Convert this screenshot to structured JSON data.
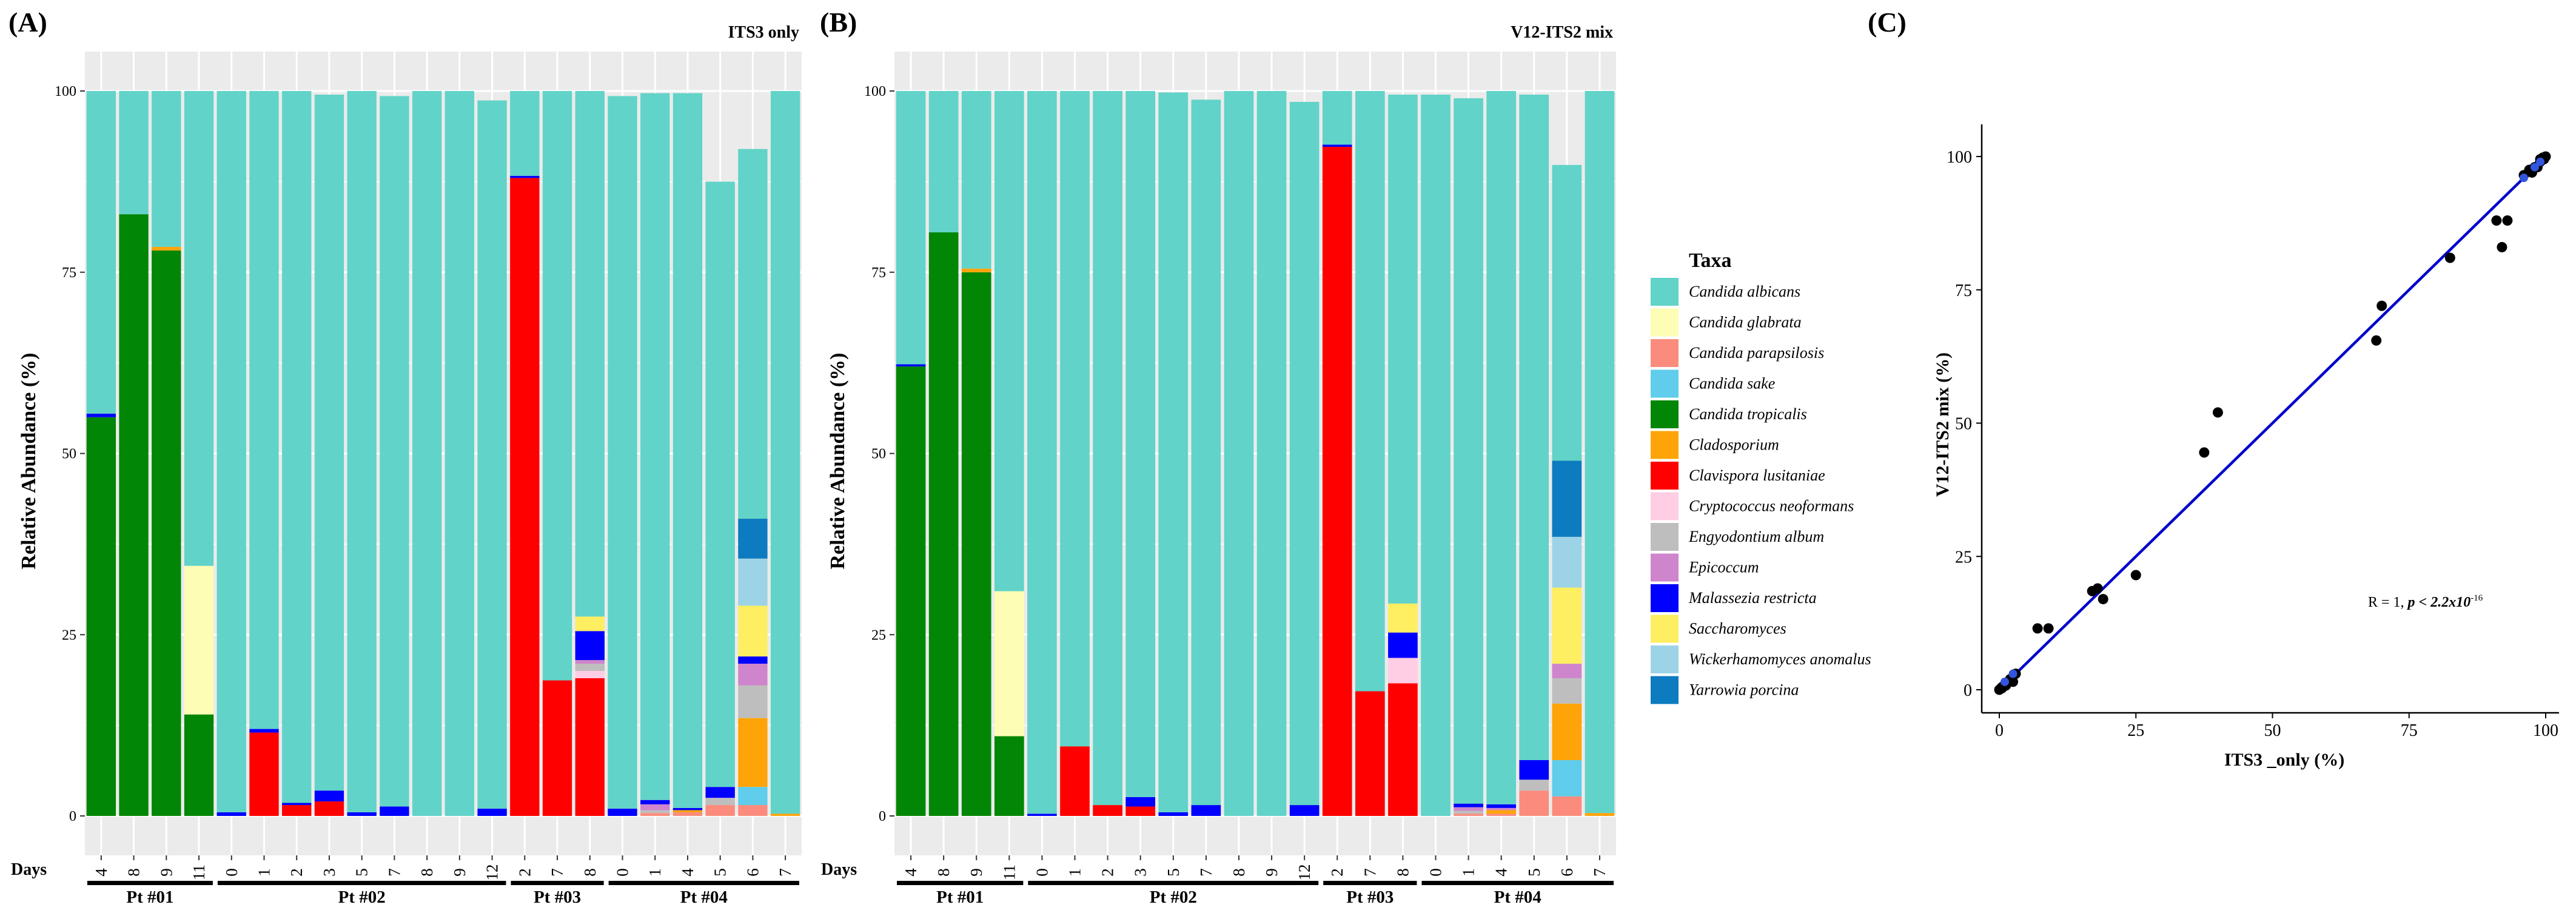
{
  "panels": [
    {
      "letter": "(A)",
      "strip": "ITS3 only"
    },
    {
      "letter": "(B)",
      "strip": "V12-ITS2 mix"
    },
    {
      "letter": "(C)"
    }
  ],
  "legend": {
    "title": "Taxa",
    "items": [
      {
        "name": "Candida albicans",
        "color": "#62d3c8"
      },
      {
        "name": "Candida glabrata",
        "color": "#fdfdb5"
      },
      {
        "name": "Candida parapsilosis",
        "color": "#fb8c7d"
      },
      {
        "name": "Candida sake",
        "color": "#5fcdeb"
      },
      {
        "name": "Candida tropicalis",
        "color": "#018605"
      },
      {
        "name": "Cladosporium",
        "color": "#fea408"
      },
      {
        "name": "Clavispora lusitaniae",
        "color": "#fe0000"
      },
      {
        "name": "Cryptococcus neoformans",
        "color": "#ffcde4"
      },
      {
        "name": "Engyodontium album",
        "color": "#bebebe"
      },
      {
        "name": "Epicoccum",
        "color": "#cf85cb"
      },
      {
        "name": "Malassezia restricta",
        "color": "#0000ff"
      },
      {
        "name": "Saccharomyces",
        "color": "#fdee62"
      },
      {
        "name": "Wickerhamomyces anomalus",
        "color": "#9dd3e6"
      },
      {
        "name": "Yarrowia porcina",
        "color": "#0d7bbf"
      }
    ]
  },
  "chart_data": [
    {
      "type": "bar",
      "stacked": true,
      "strip_title": "ITS3 only",
      "ylabel": "Relative Abundance (%)",
      "ylim": [
        0,
        100
      ],
      "yticks": [
        0,
        25,
        50,
        75,
        100
      ],
      "xlabel": "Days",
      "categories": [
        "4",
        "8",
        "9",
        "11",
        "0",
        "1",
        "2",
        "3",
        "5",
        "7",
        "8",
        "9",
        "12",
        "2",
        "7",
        "8",
        "0",
        "1",
        "4",
        "5",
        "6",
        "7"
      ],
      "groups": [
        {
          "label": "Pt #01",
          "count": 4
        },
        {
          "label": "Pt #02",
          "count": 9
        },
        {
          "label": "Pt #03",
          "count": 3
        },
        {
          "label": "Pt #04",
          "count": 6
        }
      ],
      "series": [
        {
          "name": "Candida tropicalis",
          "values": [
            55,
            83,
            78,
            14,
            0,
            0,
            0,
            0,
            0,
            0,
            0,
            0,
            0,
            0,
            0,
            0,
            0,
            0,
            0,
            0,
            0,
            0
          ]
        },
        {
          "name": "Candida glabrata",
          "values": [
            0,
            0,
            0,
            20.5,
            0,
            0,
            0,
            0,
            0,
            0,
            0,
            0,
            0,
            0,
            0,
            0,
            0,
            0,
            0,
            0,
            0,
            0
          ]
        },
        {
          "name": "Candida parapsilosis",
          "values": [
            0,
            0,
            0,
            0,
            0,
            0,
            0,
            0,
            0,
            0,
            0,
            0,
            0,
            0,
            0,
            0,
            0,
            0.4,
            0.5,
            1.5,
            1.5,
            0
          ]
        },
        {
          "name": "Candida sake",
          "values": [
            0,
            0,
            0,
            0,
            0,
            0,
            0,
            0,
            0,
            0,
            0,
            0,
            0,
            0,
            0,
            0,
            0,
            0,
            0,
            0,
            2.5,
            0
          ]
        },
        {
          "name": "Cladosporium",
          "values": [
            0,
            0,
            0.5,
            0,
            0,
            0,
            0,
            0,
            0,
            0,
            0,
            0,
            0,
            0,
            0,
            0,
            0,
            0,
            0.3,
            0,
            9.5,
            0.3
          ]
        },
        {
          "name": "Clavispora lusitaniae",
          "values": [
            0,
            0,
            0,
            0,
            0,
            11.5,
            1.5,
            2,
            0,
            0,
            0,
            0,
            0,
            88,
            18.7,
            19,
            0,
            0,
            0,
            0,
            0,
            0
          ]
        },
        {
          "name": "Cryptococcus neoformans",
          "values": [
            0,
            0,
            0,
            0,
            0,
            0,
            0,
            0,
            0,
            0,
            0,
            0,
            0,
            0,
            0,
            1,
            0,
            0,
            0,
            0,
            0,
            0
          ]
        },
        {
          "name": "Engyodontium album",
          "values": [
            0,
            0,
            0,
            0,
            0,
            0,
            0,
            0,
            0,
            0,
            0,
            0,
            0,
            0,
            0,
            1,
            0,
            0.4,
            0,
            1,
            4.5,
            0
          ]
        },
        {
          "name": "Epicoccum",
          "values": [
            0,
            0,
            0,
            0,
            0,
            0,
            0,
            0,
            0,
            0,
            0,
            0,
            0,
            0,
            0,
            0.5,
            0,
            0.8,
            0,
            0,
            3,
            0
          ]
        },
        {
          "name": "Malassezia restricta",
          "values": [
            0.5,
            0,
            0,
            0,
            0.5,
            0.5,
            0.3,
            1.5,
            0.5,
            1.3,
            0,
            0,
            1,
            0.3,
            0,
            4,
            1,
            0.6,
            0.3,
            1.5,
            1,
            0
          ]
        },
        {
          "name": "Saccharomyces",
          "values": [
            0,
            0,
            0,
            0,
            0,
            0,
            0,
            0,
            0,
            0,
            0,
            0,
            0,
            0,
            0,
            2,
            0,
            0,
            0,
            0,
            7,
            0
          ]
        },
        {
          "name": "Wickerhamomyces anomalus",
          "values": [
            0,
            0,
            0,
            0,
            0,
            0,
            0,
            0,
            0,
            0,
            0,
            0,
            0,
            0,
            0,
            0,
            0,
            0,
            0,
            0,
            6.5,
            0
          ]
        },
        {
          "name": "Yarrowia porcina",
          "values": [
            0,
            0,
            0,
            0,
            0,
            0,
            0,
            0,
            0,
            0,
            0,
            0,
            0,
            0,
            0,
            0,
            0,
            0,
            0,
            0,
            5.5,
            0
          ]
        },
        {
          "name": "Candida albicans",
          "values": [
            44.5,
            17,
            21.5,
            65.5,
            99.5,
            88,
            98.2,
            96,
            99.5,
            98,
            100,
            100,
            97.7,
            11.7,
            81.3,
            72.5,
            98.3,
            97.5,
            98.6,
            83.5,
            51,
            99.7
          ]
        }
      ]
    },
    {
      "type": "bar",
      "stacked": true,
      "strip_title": "V12-ITS2 mix",
      "ylabel": "Relative Abundance (%)",
      "ylim": [
        0,
        100
      ],
      "yticks": [
        0,
        25,
        50,
        75,
        100
      ],
      "xlabel": "Days",
      "categories": [
        "4",
        "8",
        "9",
        "11",
        "0",
        "1",
        "2",
        "3",
        "5",
        "7",
        "8",
        "9",
        "12",
        "2",
        "7",
        "8",
        "0",
        "1",
        "4",
        "5",
        "6",
        "7"
      ],
      "groups": [
        {
          "label": "Pt #01",
          "count": 4
        },
        {
          "label": "Pt #02",
          "count": 9
        },
        {
          "label": "Pt #03",
          "count": 3
        },
        {
          "label": "Pt #04",
          "count": 6
        }
      ],
      "series": [
        {
          "name": "Candida tropicalis",
          "values": [
            62,
            80.5,
            75,
            11,
            0,
            0,
            0,
            0,
            0,
            0,
            0,
            0,
            0,
            0,
            0,
            0,
            0,
            0,
            0,
            0,
            0,
            0
          ]
        },
        {
          "name": "Candida glabrata",
          "values": [
            0,
            0,
            0,
            20,
            0,
            0,
            0,
            0,
            0,
            0,
            0,
            0,
            0,
            0,
            0,
            0,
            0,
            0,
            0,
            0,
            0,
            0
          ]
        },
        {
          "name": "Candida parapsilosis",
          "values": [
            0,
            0,
            0,
            0,
            0,
            0,
            0,
            0,
            0,
            0,
            0,
            0,
            0,
            0,
            0,
            0,
            0,
            0.3,
            0.3,
            3.5,
            2.7,
            0
          ]
        },
        {
          "name": "Candida sake",
          "values": [
            0,
            0,
            0,
            0,
            0,
            0,
            0,
            0,
            0,
            0,
            0,
            0,
            0,
            0,
            0,
            0,
            0,
            0,
            0,
            0,
            5,
            0
          ]
        },
        {
          "name": "Cladosporium",
          "values": [
            0,
            0,
            0.5,
            0,
            0,
            0,
            0,
            0,
            0,
            0,
            0,
            0,
            0,
            0,
            0,
            0,
            0,
            0,
            0.5,
            0,
            7.8,
            0.4
          ]
        },
        {
          "name": "Clavispora lusitaniae",
          "values": [
            0,
            0,
            0,
            0,
            0,
            9.6,
            1.5,
            1.3,
            0,
            0,
            0,
            0,
            0,
            92.3,
            17.2,
            18.3,
            0,
            0,
            0,
            0,
            0,
            0
          ]
        },
        {
          "name": "Cryptococcus neoformans",
          "values": [
            0,
            0,
            0,
            0,
            0,
            0,
            0,
            0,
            0,
            0,
            0,
            0,
            0,
            0,
            0,
            3.5,
            0,
            0,
            0,
            0,
            0,
            0
          ]
        },
        {
          "name": "Engyodontium album",
          "values": [
            0,
            0,
            0,
            0,
            0,
            0,
            0,
            0,
            0,
            0,
            0,
            0,
            0,
            0,
            0,
            0,
            0,
            0.4,
            0,
            1.5,
            3.5,
            0
          ]
        },
        {
          "name": "Epicoccum",
          "values": [
            0,
            0,
            0,
            0,
            0,
            0,
            0,
            0,
            0,
            0,
            0,
            0,
            0,
            0,
            0,
            0,
            0,
            0.5,
            0.3,
            0,
            2,
            0
          ]
        },
        {
          "name": "Malassezia restricta",
          "values": [
            0.3,
            0,
            0,
            0,
            0.3,
            0,
            0,
            1.3,
            0.5,
            1.5,
            0,
            0,
            1.5,
            0.3,
            0,
            3.5,
            0,
            0.5,
            0.5,
            2.7,
            0,
            0
          ]
        },
        {
          "name": "Saccharomyces",
          "values": [
            0,
            0,
            0,
            0,
            0,
            0,
            0,
            0,
            0,
            0,
            0,
            0,
            0,
            0,
            0,
            4,
            0,
            0,
            0,
            0,
            10.5,
            0
          ]
        },
        {
          "name": "Wickerhamomyces anomalus",
          "values": [
            0,
            0,
            0,
            0,
            0,
            0,
            0,
            0,
            0,
            0,
            0,
            0,
            0,
            0,
            0,
            0,
            0,
            0,
            0,
            0,
            7,
            0
          ]
        },
        {
          "name": "Yarrowia porcina",
          "values": [
            0,
            0,
            0,
            0,
            0,
            0,
            0,
            0,
            0,
            0,
            0,
            0,
            0,
            0,
            0,
            0,
            0,
            0,
            0,
            0,
            10.5,
            0
          ]
        },
        {
          "name": "Candida albicans",
          "values": [
            37.7,
            19.5,
            24.5,
            69,
            99.7,
            90.4,
            98.5,
            97.4,
            99.3,
            97.3,
            100,
            100,
            97,
            7.4,
            82.8,
            70.2,
            99.5,
            97.3,
            98.4,
            91.8,
            40.8,
            99.6
          ]
        }
      ]
    },
    {
      "type": "scatter",
      "xlabel": "ITS3 _only (%)",
      "ylabel": "V12-ITS2 mix (%)",
      "xlim": [
        0,
        100
      ],
      "ylim": [
        0,
        100
      ],
      "xticks": [
        0,
        25,
        50,
        75,
        100
      ],
      "yticks": [
        0,
        25,
        50,
        75,
        100
      ],
      "fit_line": {
        "from": [
          0,
          0
        ],
        "to": [
          100,
          100
        ],
        "color": "#0000cc"
      },
      "annotation": {
        "prefix": "R = 1, ",
        "p_text": "p < 2.2x10",
        "p_exp": "-16"
      },
      "points": [
        [
          0,
          0
        ],
        [
          0.3,
          0.3
        ],
        [
          0.5,
          0.3
        ],
        [
          1,
          1
        ],
        [
          1.5,
          1.3
        ],
        [
          2,
          2
        ],
        [
          3,
          3
        ],
        [
          0.5,
          0.5
        ],
        [
          1.2,
          0.8
        ],
        [
          2.5,
          1.5
        ],
        [
          7,
          11.5
        ],
        [
          9,
          11.5
        ],
        [
          17,
          18.5
        ],
        [
          18,
          19
        ],
        [
          19,
          17
        ],
        [
          25,
          21.5
        ],
        [
          37.5,
          44.5
        ],
        [
          40,
          52
        ],
        [
          69,
          65.5
        ],
        [
          70,
          72
        ],
        [
          82.5,
          81
        ],
        [
          91,
          88
        ],
        [
          93,
          88
        ],
        [
          92,
          83
        ],
        [
          96,
          96.5
        ],
        [
          97,
          97.5
        ],
        [
          97.5,
          97
        ],
        [
          98,
          98
        ],
        [
          98.5,
          98
        ],
        [
          99,
          99.5
        ],
        [
          99.5,
          99.8
        ],
        [
          99.7,
          99.5
        ],
        [
          100,
          100
        ],
        [
          99,
          99
        ]
      ],
      "blue_points": [
        [
          1,
          1.5
        ],
        [
          2.5,
          3
        ],
        [
          96,
          96
        ],
        [
          98,
          98
        ],
        [
          99,
          99
        ]
      ]
    }
  ]
}
